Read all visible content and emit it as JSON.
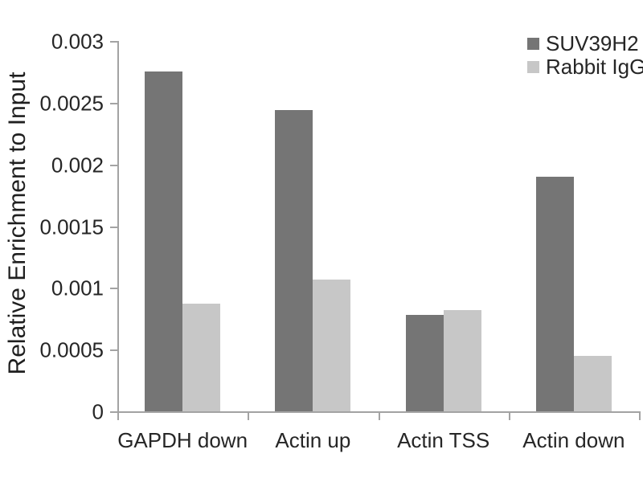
{
  "chart_data": {
    "type": "bar",
    "title": "",
    "ylabel": "Relative Enrichment to Input",
    "xlabel": "",
    "categories": [
      "GAPDH down",
      "Actin up",
      "Actin TSS",
      "Actin down"
    ],
    "series": [
      {
        "name": "SUV39H2",
        "color": "#757575",
        "values": [
          0.00275,
          0.00244,
          0.00078,
          0.0019
        ]
      },
      {
        "name": "Rabbit IgG",
        "color": "#c7c7c7",
        "values": [
          0.00087,
          0.00107,
          0.00082,
          0.00045
        ]
      }
    ],
    "ylim": [
      0,
      0.003
    ],
    "ytick_values": [
      0,
      0.0005,
      0.001,
      0.0015,
      0.002,
      0.0025,
      0.003
    ],
    "ytick_labels": [
      "0",
      "0.0005",
      "0.001",
      "0.0015",
      "0.002",
      "0.0025",
      "0.003"
    ],
    "legend_position": "top-right",
    "grid": false,
    "axis_color": "#a3a3a3",
    "text_color": "#262626"
  }
}
